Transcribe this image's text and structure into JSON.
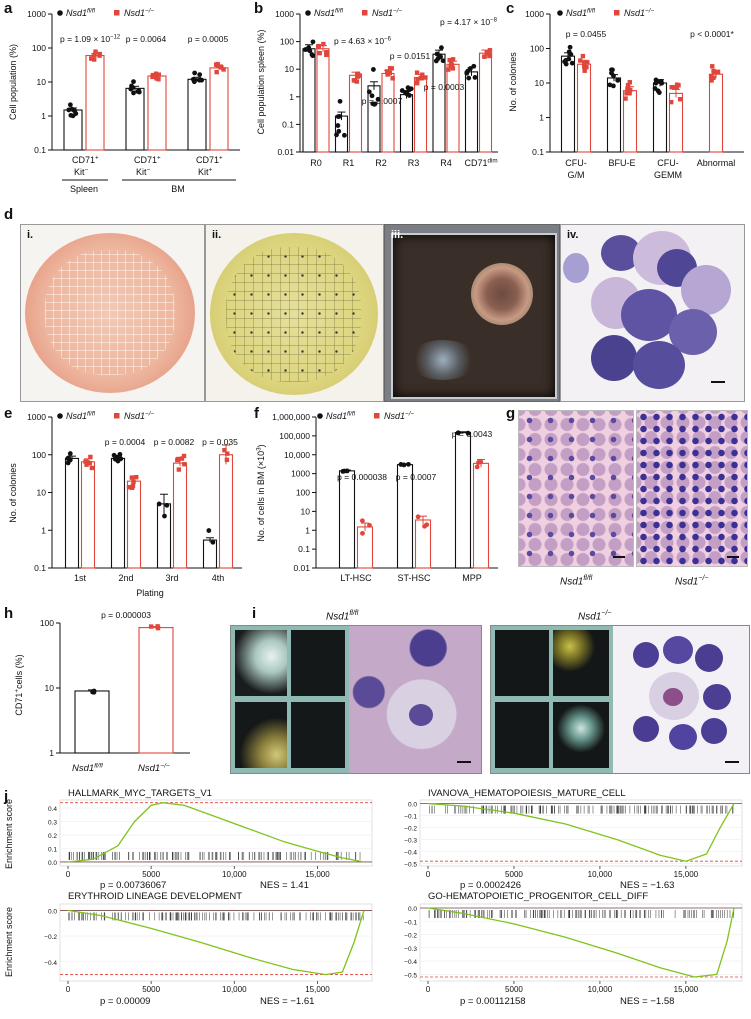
{
  "panels": {
    "a": "a",
    "b": "b",
    "c": "c",
    "d": "d",
    "e": "e",
    "f": "f",
    "g": "g",
    "h": "h",
    "i": "i",
    "j": "j"
  },
  "legend": {
    "ctrl": "Nsd1",
    "ctrl_sup": "fl/fl",
    "ko": "Nsd1",
    "ko_sup": "−/−"
  },
  "colors": {
    "ctrl": "#111111",
    "ko": "#e0463b",
    "gsea_line": "#7fc31c",
    "gsea_dash": "#e0463b"
  },
  "chart_data": [
    {
      "id": "a",
      "type": "bar",
      "ylabel": "Cell population (%)",
      "yscale": "log",
      "ylim": [
        0.1,
        1000
      ],
      "yticks": [
        "0.1",
        "1",
        "10",
        "100",
        "1000"
      ],
      "categories": [
        "CD71+ Kit−",
        "CD71+ Kit−",
        "CD71+ Kit+"
      ],
      "category_labels": [
        [
          "CD71",
          "+"
        ],
        [
          "Kit",
          "−"
        ],
        [
          "CD71",
          "+"
        ],
        [
          "Kit",
          "−"
        ],
        [
          "CD71",
          "+"
        ],
        [
          "Kit",
          "+"
        ]
      ],
      "groups": [
        "Spleen",
        "BM"
      ],
      "series": [
        {
          "name": "Nsd1 fl/fl",
          "values": [
            1.5,
            6.5,
            12
          ]
        },
        {
          "name": "Nsd1 −/−",
          "values": [
            60,
            15,
            26
          ]
        }
      ],
      "pvalues": [
        "p = 1.09 × 10",
        "p = 0.0064",
        "p = 0.0005"
      ],
      "pvalue_exp": "−12"
    },
    {
      "id": "b",
      "type": "bar",
      "ylabel": "Cell population spleen (%)",
      "yscale": "log",
      "ylim": [
        0.01,
        1000
      ],
      "yticks": [
        "0.01",
        "0.1",
        "1",
        "10",
        "100",
        "1000"
      ],
      "categories": [
        "R0",
        "R1",
        "R2",
        "R3",
        "R4",
        "CD71"
      ],
      "category_sup": "dim",
      "series": [
        {
          "name": "Nsd1 fl/fl",
          "values": [
            55,
            0.2,
            2.5,
            1.2,
            35,
            8
          ]
        },
        {
          "name": "Nsd1 −/−",
          "values": [
            55,
            6,
            7,
            5,
            15,
            38
          ]
        }
      ],
      "pvalues": [
        "p = 4.63 × 10",
        "p = 0.0151",
        "p = 0.0007",
        "p = 0.0003",
        "p = 4.17 × 10"
      ],
      "pvalue_exps": [
        "−6",
        "−8"
      ]
    },
    {
      "id": "c",
      "type": "bar",
      "ylabel": "No. of colonies",
      "yscale": "log",
      "ylim": [
        0.1,
        1000
      ],
      "yticks": [
        "0.1",
        "1",
        "10",
        "100",
        "1000"
      ],
      "categories": [
        "CFU-G/M",
        "BFU-E",
        "CFU-GEMM",
        "Abnormal"
      ],
      "category_labels": [
        [
          "CFU-",
          "G/M"
        ],
        [
          "BFU-E"
        ],
        [
          "CFU-",
          "GEMM"
        ],
        [
          "Abnormal"
        ]
      ],
      "series": [
        {
          "name": "Nsd1 fl/fl",
          "values": [
            60,
            14,
            10,
            null
          ]
        },
        {
          "name": "Nsd1 −/−",
          "values": [
            35,
            6,
            5,
            18
          ]
        }
      ],
      "pvalues": [
        "p = 0.0455",
        "p < 0.0001*"
      ]
    },
    {
      "id": "e",
      "type": "bar",
      "ylabel": "No. of colonies",
      "xlabel": "Plating",
      "yscale": "log",
      "ylim": [
        0.1,
        1000
      ],
      "yticks": [
        "0.1",
        "1",
        "10",
        "100",
        "1000"
      ],
      "categories": [
        "1st",
        "2nd",
        "3rd",
        "4th"
      ],
      "series": [
        {
          "name": "Nsd1 fl/fl",
          "values": [
            80,
            80,
            5,
            0.55
          ]
        },
        {
          "name": "Nsd1 −/−",
          "values": [
            65,
            20,
            60,
            100
          ]
        }
      ],
      "pvalues": [
        "p = 0.0004",
        "p = 0.0082",
        "p = 0.035"
      ]
    },
    {
      "id": "f",
      "type": "bar",
      "ylabel": "No. of cells in BM (×10",
      "ylabel_sup": "3",
      "ylabel_end": ")",
      "yscale": "log",
      "ylim": [
        0.01,
        1000000
      ],
      "yticks": [
        "0.01",
        "0.1",
        "1",
        "10",
        "100",
        "1000",
        "10,000",
        "100,000",
        "1,000,000"
      ],
      "categories": [
        "LT-HSC",
        "ST-HSC",
        "MPP"
      ],
      "series": [
        {
          "name": "Nsd1 fl/fl",
          "values": [
            1400,
            3000,
            150000
          ]
        },
        {
          "name": "Nsd1 −/−",
          "values": [
            1.5,
            3.5,
            3500
          ]
        }
      ],
      "pvalues": [
        "p = 0.000038",
        "p = 0.0007",
        "p = 0.0043"
      ]
    },
    {
      "id": "h",
      "type": "bar",
      "ylabel": "CD71",
      "ylabel_sup": "+",
      "ylabel_end": "cells (%)",
      "yscale": "log",
      "ylim": [
        1,
        100
      ],
      "yticks": [
        "1",
        "10",
        "100"
      ],
      "categories": [
        "Nsd1 fl/fl",
        "Nsd1 −/−"
      ],
      "values": [
        9,
        85
      ],
      "pvalues": [
        "p = 0.000003"
      ]
    },
    {
      "id": "j",
      "type": "line",
      "ylabel": "Enrichment score",
      "plots": [
        {
          "title": "HALLMARK_MYC_TARGETS_V1",
          "p": "p = 0.00736067",
          "nes": "NES = 1.41",
          "yticks": [
            "0.4",
            "0.3",
            "0.2",
            "0.1",
            "0.0"
          ],
          "ylim": [
            -0.03,
            0.46
          ],
          "xticks": [
            "0",
            "5000",
            "10,000",
            "15,000"
          ],
          "x": [
            0,
            1500,
            3000,
            4000,
            5000,
            5700,
            7000,
            9000,
            11000,
            13000,
            15000,
            16500,
            17800
          ],
          "y": [
            0,
            0.02,
            0.12,
            0.3,
            0.42,
            0.44,
            0.42,
            0.33,
            0.24,
            0.15,
            0.08,
            0.03,
            0
          ]
        },
        {
          "title": "IVANOVA_HEMATOPOIESIS_MATURE_CELL",
          "p": "p = 0.0002426",
          "nes": "NES = −1.63",
          "yticks": [
            "0.0",
            "−0.1",
            "−0.2",
            "−0.3",
            "−0.4",
            "−0.5"
          ],
          "ylim": [
            -0.52,
            0.03
          ],
          "xticks": [
            "0",
            "5000",
            "10,000",
            "15,000"
          ],
          "x": [
            0,
            2000,
            5000,
            8000,
            11000,
            13500,
            15000,
            16200,
            17000,
            17800
          ],
          "y": [
            0,
            -0.02,
            -0.08,
            -0.17,
            -0.3,
            -0.43,
            -0.48,
            -0.42,
            -0.2,
            0
          ]
        },
        {
          "title": "ERYTHROID LINEAGE DEVELOPMENT",
          "p": "p = 0.00009",
          "nes": "NES = −1.61",
          "yticks": [
            "0.0",
            "−0.2",
            "−0.4"
          ],
          "ylim": [
            -0.55,
            0.05
          ],
          "xticks": [
            "0",
            "5000",
            "10,000",
            "15,000"
          ],
          "x": [
            0,
            2000,
            5000,
            8000,
            11000,
            13500,
            15500,
            16500,
            17200,
            17800
          ],
          "y": [
            0,
            -0.04,
            -0.14,
            -0.25,
            -0.37,
            -0.46,
            -0.5,
            -0.48,
            -0.25,
            0
          ]
        },
        {
          "title": "GO-HEMATOPOIETIC_PROGENITOR_CELL_DIFF",
          "p": "p = 0.00112158",
          "nes": "NES = −1.58",
          "yticks": [
            "0.0",
            "−0.1",
            "−0.2",
            "−0.3",
            "−0.4",
            "−0.5"
          ],
          "ylim": [
            -0.55,
            0.03
          ],
          "xticks": [
            "0",
            "5000",
            "10,000",
            "15,000"
          ],
          "x": [
            0,
            2000,
            5000,
            8000,
            11000,
            13500,
            15500,
            16800,
            17400,
            17800
          ],
          "y": [
            0,
            -0.04,
            -0.12,
            -0.22,
            -0.34,
            -0.45,
            -0.52,
            -0.5,
            -0.25,
            0
          ]
        }
      ]
    }
  ],
  "panel_d": {
    "labels": [
      "i.",
      "ii.",
      "iii.",
      "iv."
    ]
  },
  "panel_g": {
    "labels": [
      "Nsd1",
      "Nsd1"
    ],
    "sups": [
      "fl/fl",
      "−/−"
    ]
  },
  "panel_i": {
    "labels": [
      "Nsd1",
      "Nsd1"
    ],
    "sups": [
      "fl/fl",
      "−/−"
    ]
  }
}
